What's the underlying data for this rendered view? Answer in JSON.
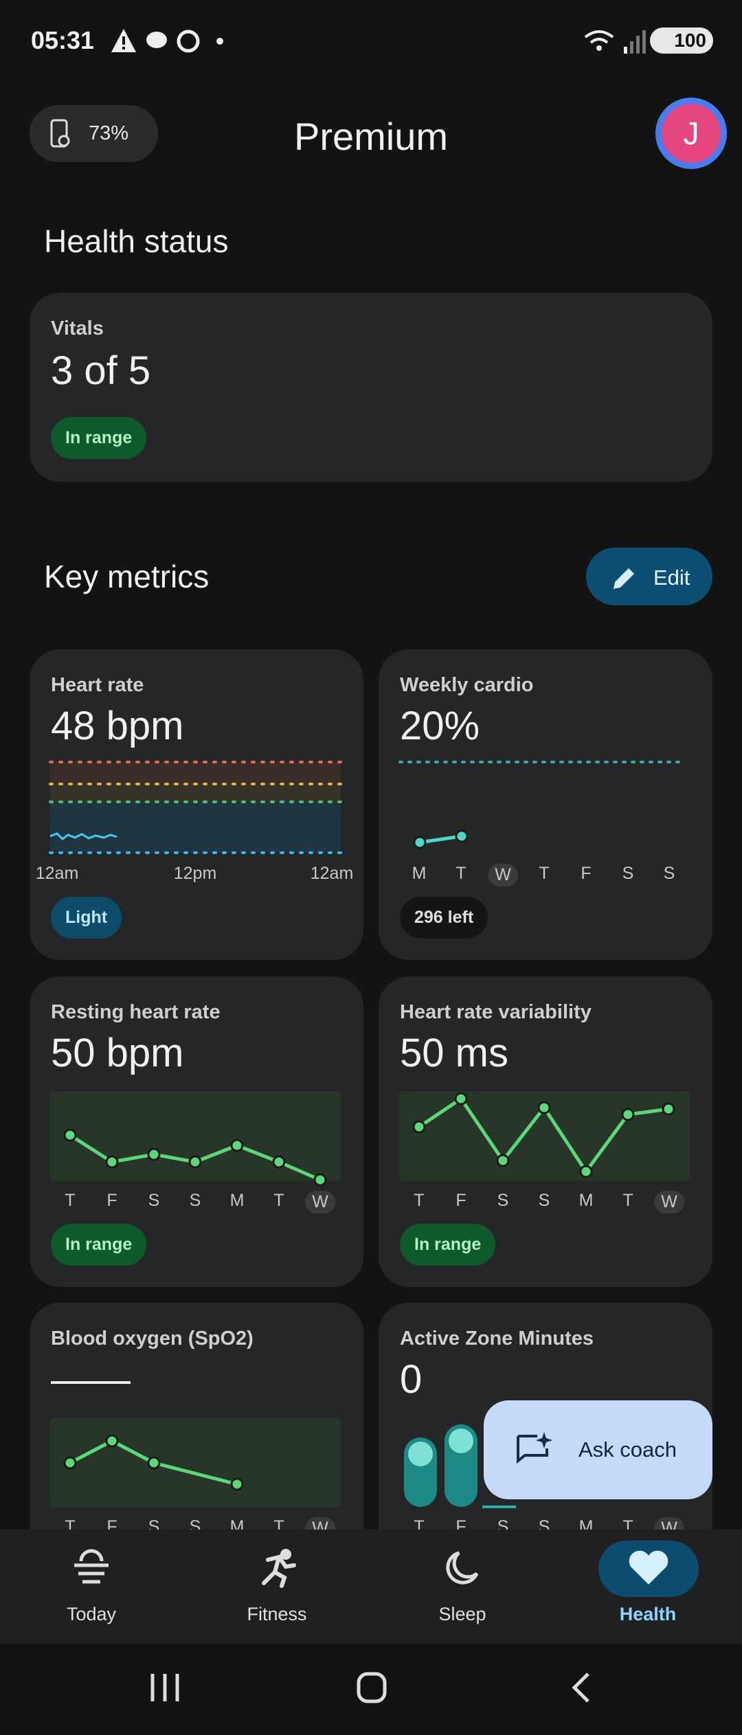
{
  "status_bar": {
    "time": "05:31",
    "battery": "100"
  },
  "header": {
    "watch_battery": "73%",
    "title": "Premium",
    "avatar": "J"
  },
  "health_status": {
    "title": "Health status",
    "vitals": {
      "label": "Vitals",
      "value": "3 of 5",
      "status": "In range"
    }
  },
  "key_metrics": {
    "title": "Key metrics",
    "edit": "Edit",
    "cards": [
      {
        "label": "Heart rate",
        "value": "48 bpm",
        "axis": [
          "12am",
          "12pm",
          "12am"
        ],
        "chip": "Light"
      },
      {
        "label": "Weekly cardio",
        "value": "20%",
        "axis": [
          "M",
          "T",
          "W",
          "T",
          "F",
          "S",
          "S"
        ],
        "chip": "296 left"
      },
      {
        "label": "Resting heart rate",
        "value": "50 bpm",
        "axis": [
          "T",
          "F",
          "S",
          "S",
          "M",
          "T",
          "W"
        ],
        "chip": "In range"
      },
      {
        "label": "Heart rate variability",
        "value": "50 ms",
        "axis": [
          "T",
          "F",
          "S",
          "S",
          "M",
          "T",
          "W"
        ],
        "chip": "In range"
      },
      {
        "label": "Blood oxygen (SpO2)",
        "value": "——",
        "axis": [
          "T",
          "F",
          "S",
          "S",
          "M",
          "T",
          "W"
        ]
      },
      {
        "label": "Active Zone Minutes",
        "value": "0",
        "axis": [
          "T",
          "F",
          "S",
          "S",
          "M",
          "T",
          "W"
        ]
      }
    ]
  },
  "fab": {
    "label": "Ask coach"
  },
  "nav": [
    "Today",
    "Fitness",
    "Sleep",
    "Health"
  ]
}
